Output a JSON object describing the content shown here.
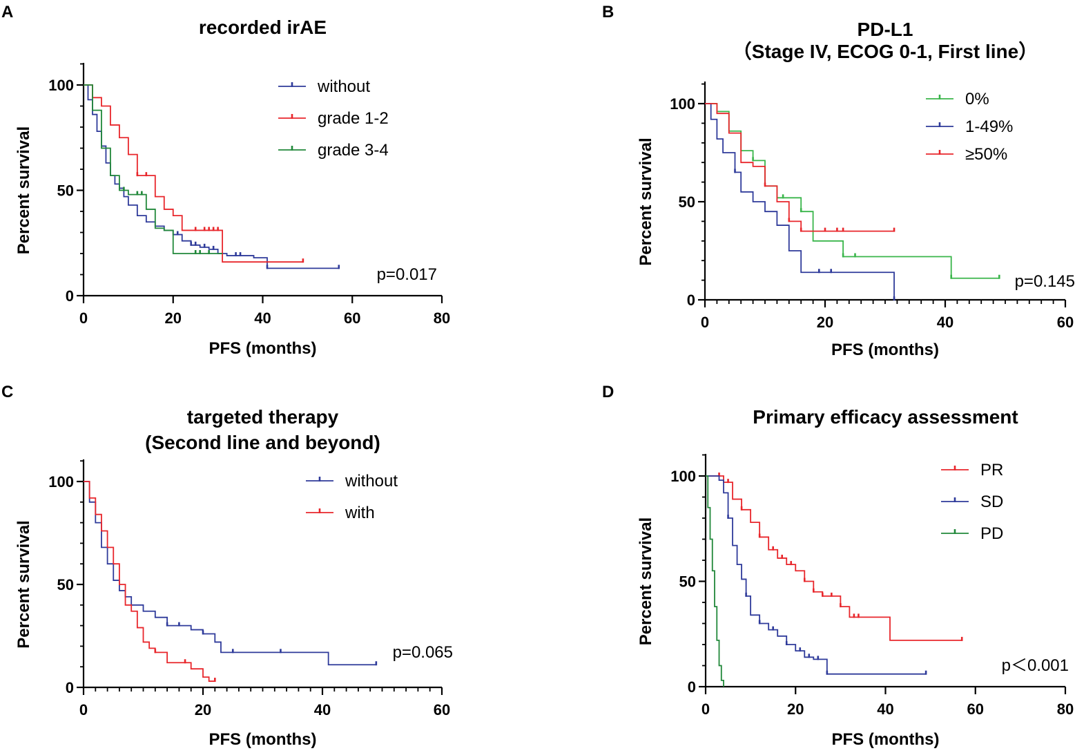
{
  "chart_data": [
    {
      "id": "A",
      "panel_label": "A",
      "type": "line",
      "subtype": "kaplan-meier",
      "title": "recorded irAE",
      "subtitle": "",
      "xlabel": "PFS (months)",
      "ylabel": "Percent survival",
      "xlim": [
        0,
        80
      ],
      "ylim": [
        0,
        100
      ],
      "x_ticks": [
        0,
        20,
        40,
        60,
        80
      ],
      "y_ticks": [
        0,
        50,
        100
      ],
      "x_minor_step": 0,
      "y_minor_step": 10,
      "p_value": "p=0.017",
      "legend_position": "top-right",
      "series": [
        {
          "name": "without",
          "color": "#2e3a9a",
          "x": [
            0,
            1,
            2,
            3,
            4,
            5,
            6,
            7,
            8,
            9,
            10,
            12,
            14,
            16,
            18,
            20,
            22,
            24,
            26,
            28,
            30,
            32,
            35,
            38,
            41,
            44,
            47,
            50,
            54,
            57
          ],
          "y": [
            100,
            93,
            86,
            78,
            71,
            63,
            57,
            53,
            51,
            47,
            43,
            38,
            35,
            33,
            31,
            29,
            26,
            24,
            23,
            22,
            20,
            19,
            19,
            18,
            13,
            13,
            13,
            13,
            13,
            13
          ],
          "censor_x": [
            21,
            24,
            25,
            27,
            29,
            34,
            35,
            41,
            57
          ]
        },
        {
          "name": "grade 1-2",
          "color": "#e8262b",
          "x": [
            0,
            2,
            4,
            6,
            8,
            10,
            12,
            14,
            16,
            18,
            20,
            22,
            24,
            26,
            28,
            31,
            32,
            40,
            49
          ],
          "y": [
            100,
            94,
            90,
            81,
            75,
            67,
            57,
            57,
            47,
            41,
            38,
            31,
            31,
            31,
            31,
            16,
            16,
            16,
            16
          ],
          "censor_x": [
            12,
            14,
            25,
            27,
            28,
            29,
            30,
            49
          ]
        },
        {
          "name": "grade 3-4",
          "color": "#21883a",
          "x": [
            0,
            2,
            4,
            6,
            8,
            10,
            12,
            14,
            16,
            18,
            20,
            22,
            25,
            28,
            31
          ],
          "y": [
            100,
            88,
            70,
            57,
            50,
            48,
            48,
            41,
            32,
            31,
            20,
            20,
            20,
            20,
            20
          ],
          "censor_x": [
            9,
            12,
            13,
            25,
            26,
            28
          ]
        }
      ]
    },
    {
      "id": "B",
      "panel_label": "B",
      "type": "line",
      "subtype": "kaplan-meier",
      "title": "PD-L1",
      "subtitle": "（Stage IV, ECOG 0-1, First line）",
      "xlabel": "PFS (months)",
      "ylabel": "Percent survival",
      "xlim": [
        0,
        60
      ],
      "ylim": [
        0,
        100
      ],
      "x_ticks": [
        0,
        20,
        40,
        60
      ],
      "y_ticks": [
        0,
        50,
        100
      ],
      "x_minor_step": 2,
      "y_minor_step": 10,
      "p_value": "p=0.145",
      "legend_position": "top-right",
      "series": [
        {
          "name": "0%",
          "color": "#39b54a",
          "x": [
            0,
            2,
            4,
            6,
            8,
            10,
            12,
            14,
            16,
            18,
            23,
            41,
            49
          ],
          "y": [
            100,
            96,
            86,
            76,
            71,
            58,
            52,
            52,
            45,
            30,
            22,
            11,
            11
          ],
          "censor_x": [
            8,
            13,
            16,
            23,
            25,
            41,
            49
          ]
        },
        {
          "name": "1-49%",
          "color": "#2e3a9a",
          "x": [
            0,
            1,
            2,
            3,
            5,
            6,
            8,
            10,
            12,
            14,
            16,
            18,
            20,
            25,
            31.5
          ],
          "y": [
            100,
            92,
            82,
            75,
            65,
            55,
            50,
            45,
            38,
            25,
            14,
            14,
            14,
            14,
            0
          ],
          "censor_x": [
            5,
            19,
            21,
            31.5
          ]
        },
        {
          "name": "≥50%",
          "color": "#e8262b",
          "x": [
            0,
            2,
            4,
            6,
            8,
            10,
            12,
            14,
            16,
            20,
            25,
            31.5
          ],
          "y": [
            100,
            95,
            85,
            70,
            68,
            58,
            50,
            40,
            35,
            35,
            35,
            35
          ],
          "censor_x": [
            10,
            14,
            16,
            20,
            22,
            23,
            31.5
          ]
        }
      ]
    },
    {
      "id": "C",
      "panel_label": "C",
      "type": "line",
      "subtype": "kaplan-meier",
      "title": "targeted therapy",
      "subtitle": "(Second line and beyond)",
      "xlabel": "PFS (months)",
      "ylabel": "Percent survival",
      "xlim": [
        0,
        60
      ],
      "ylim": [
        0,
        100
      ],
      "x_ticks": [
        0,
        20,
        40,
        60
      ],
      "y_ticks": [
        0,
        50,
        100
      ],
      "x_minor_step": 2,
      "y_minor_step": 10,
      "p_value": "p=0.065",
      "legend_position": "top-right",
      "series": [
        {
          "name": "without",
          "color": "#2e3a9a",
          "x": [
            0,
            1,
            2,
            3,
            4,
            5,
            6,
            7,
            8,
            10,
            12,
            14,
            16,
            18,
            20,
            22,
            23,
            25,
            30,
            35,
            41,
            45,
            49
          ],
          "y": [
            100,
            90,
            80,
            68,
            60,
            52,
            47,
            44,
            40,
            37,
            34,
            30,
            30,
            28,
            26,
            22,
            17,
            17,
            17,
            17,
            11,
            11,
            11
          ],
          "censor_x": [
            14,
            16,
            20,
            25,
            33,
            49
          ]
        },
        {
          "name": "with",
          "color": "#e8262b",
          "x": [
            0,
            1,
            2,
            3,
            4,
            5,
            6,
            7,
            8,
            9,
            10,
            11,
            12,
            14,
            16,
            18,
            20,
            21,
            22
          ],
          "y": [
            100,
            92,
            84,
            76,
            68,
            60,
            50,
            40,
            37,
            29,
            22,
            19,
            17,
            12,
            12,
            9,
            5,
            3,
            3
          ],
          "censor_x": [
            12,
            17,
            22
          ]
        }
      ]
    },
    {
      "id": "D",
      "panel_label": "D",
      "type": "line",
      "subtype": "kaplan-meier",
      "title": "Primary efficacy assessment",
      "subtitle": "",
      "xlabel": "PFS (months)",
      "ylabel": "Percent survival",
      "xlim": [
        0,
        80
      ],
      "ylim": [
        0,
        100
      ],
      "x_ticks": [
        0,
        20,
        40,
        60,
        80
      ],
      "y_ticks": [
        0,
        50,
        100
      ],
      "x_minor_step": 0,
      "y_minor_step": 10,
      "p_value": "p＜0.001",
      "legend_position": "top-right",
      "series": [
        {
          "name": "PR",
          "color": "#e8262b",
          "x": [
            0,
            2,
            4,
            6,
            8,
            10,
            12,
            14,
            16,
            18,
            20,
            22,
            24,
            26,
            28,
            30,
            32,
            41,
            50,
            57
          ],
          "y": [
            100,
            100,
            97,
            89,
            84,
            78,
            71,
            65,
            61,
            58,
            55,
            50,
            45,
            43,
            43,
            38,
            33,
            22,
            22,
            22
          ],
          "censor_x": [
            3,
            5,
            8,
            12,
            15,
            17,
            19,
            22,
            24,
            26,
            28,
            30,
            33,
            34,
            57
          ]
        },
        {
          "name": "SD",
          "color": "#2e3a9a",
          "x": [
            0,
            3,
            4,
            5,
            6,
            7,
            8,
            9,
            10,
            12,
            14,
            16,
            18,
            20,
            22,
            24,
            27,
            35,
            49
          ],
          "y": [
            100,
            98,
            92,
            80,
            67,
            58,
            51,
            43,
            34,
            30,
            27,
            24,
            20,
            17,
            14,
            13,
            6,
            6,
            6
          ],
          "censor_x": [
            5,
            9,
            12,
            15,
            18,
            21,
            23,
            25,
            27,
            49
          ]
        },
        {
          "name": "PD",
          "color": "#21883a",
          "x": [
            0,
            0.5,
            1,
            1.5,
            2,
            2.5,
            3,
            3.5,
            4
          ],
          "y": [
            100,
            85,
            70,
            55,
            38,
            22,
            10,
            3,
            0
          ],
          "censor_x": []
        }
      ]
    }
  ]
}
